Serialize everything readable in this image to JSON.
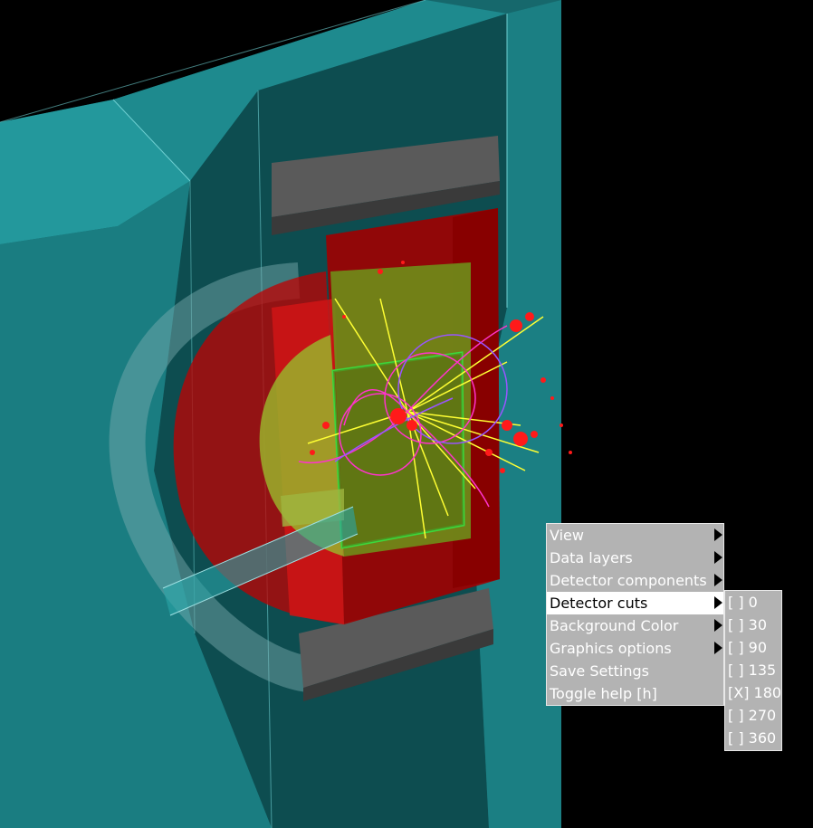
{
  "menu": {
    "items": [
      {
        "label": "View",
        "submenu": true
      },
      {
        "label": "Data layers",
        "submenu": true
      },
      {
        "label": "Detector components",
        "submenu": true
      },
      {
        "label": "Detector cuts",
        "submenu": true,
        "active": true
      },
      {
        "label": "Background Color",
        "submenu": true
      },
      {
        "label": "Graphics options",
        "submenu": true
      },
      {
        "label": "Save Settings",
        "submenu": false
      },
      {
        "label": "Toggle help [h]",
        "submenu": false
      }
    ]
  },
  "cuts_submenu": {
    "items": [
      {
        "label": "[ ] 0"
      },
      {
        "label": "[ ] 30"
      },
      {
        "label": "[ ] 90"
      },
      {
        "label": "[ ] 135"
      },
      {
        "label": "[X] 180"
      },
      {
        "label": "[ ] 270"
      },
      {
        "label": "[ ] 360"
      }
    ]
  },
  "colors": {
    "background": "#000000",
    "outer_detector": "#1f8f93",
    "calorimeter": "#b30000",
    "tracker": "#8aa020",
    "menu_bg": "#b3b3b3",
    "menu_highlight": "#ffffff"
  }
}
